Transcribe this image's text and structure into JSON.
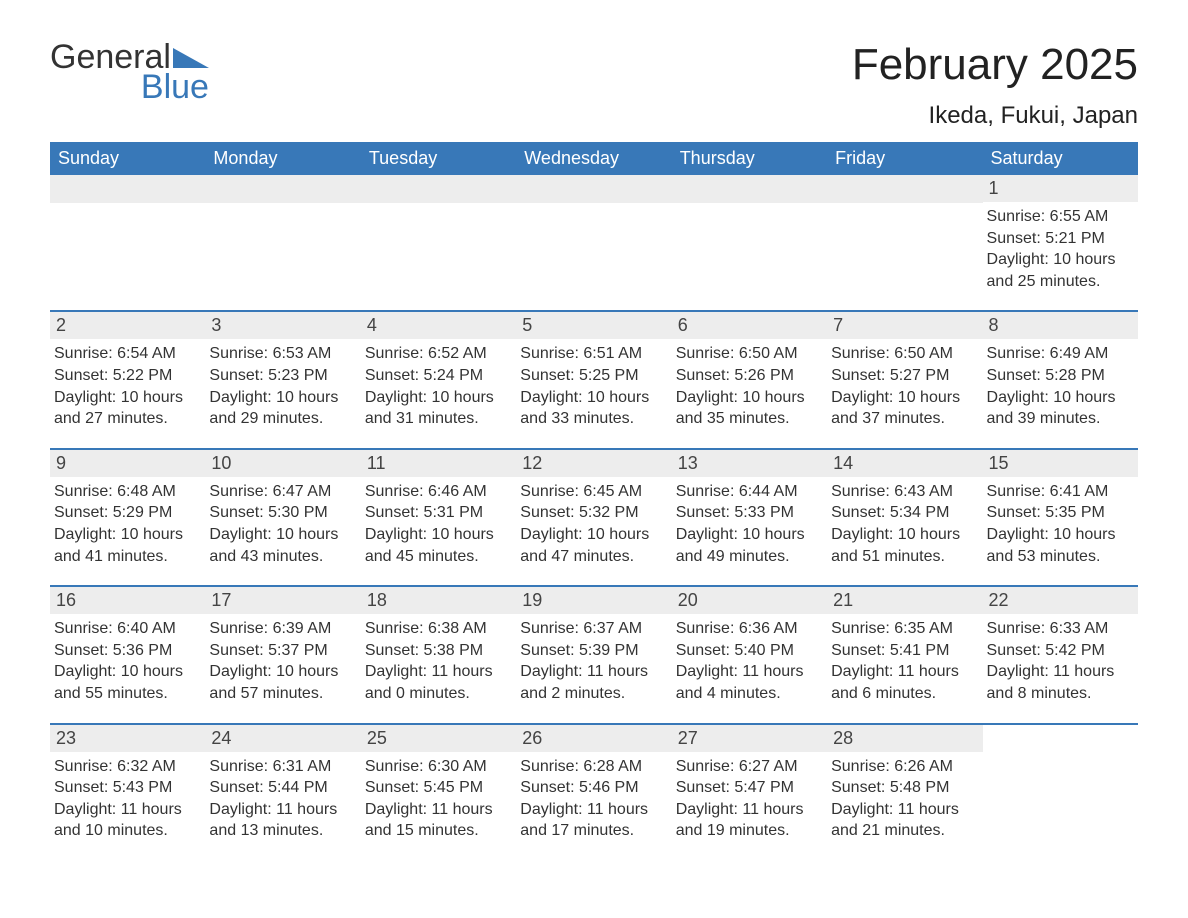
{
  "brand": {
    "word1": "General",
    "word2": "Blue"
  },
  "title": "February 2025",
  "location": "Ikeda, Fukui, Japan",
  "colors": {
    "header_bg": "#3878b8",
    "header_text": "#ffffff",
    "daynum_bg": "#ededed",
    "border": "#3878b8",
    "text": "#333333",
    "brand_blue": "#3878b8"
  },
  "typography": {
    "title_fontsize": 44,
    "location_fontsize": 24,
    "weekday_fontsize": 18,
    "daynum_fontsize": 18,
    "body_fontsize": 16
  },
  "weekdays": [
    "Sunday",
    "Monday",
    "Tuesday",
    "Wednesday",
    "Thursday",
    "Friday",
    "Saturday"
  ],
  "weeks": [
    [
      {
        "empty": true
      },
      {
        "empty": true
      },
      {
        "empty": true
      },
      {
        "empty": true
      },
      {
        "empty": true
      },
      {
        "empty": true
      },
      {
        "num": "1",
        "sunrise": "Sunrise: 6:55 AM",
        "sunset": "Sunset: 5:21 PM",
        "daylight1": "Daylight: 10 hours",
        "daylight2": "and 25 minutes."
      }
    ],
    [
      {
        "num": "2",
        "sunrise": "Sunrise: 6:54 AM",
        "sunset": "Sunset: 5:22 PM",
        "daylight1": "Daylight: 10 hours",
        "daylight2": "and 27 minutes."
      },
      {
        "num": "3",
        "sunrise": "Sunrise: 6:53 AM",
        "sunset": "Sunset: 5:23 PM",
        "daylight1": "Daylight: 10 hours",
        "daylight2": "and 29 minutes."
      },
      {
        "num": "4",
        "sunrise": "Sunrise: 6:52 AM",
        "sunset": "Sunset: 5:24 PM",
        "daylight1": "Daylight: 10 hours",
        "daylight2": "and 31 minutes."
      },
      {
        "num": "5",
        "sunrise": "Sunrise: 6:51 AM",
        "sunset": "Sunset: 5:25 PM",
        "daylight1": "Daylight: 10 hours",
        "daylight2": "and 33 minutes."
      },
      {
        "num": "6",
        "sunrise": "Sunrise: 6:50 AM",
        "sunset": "Sunset: 5:26 PM",
        "daylight1": "Daylight: 10 hours",
        "daylight2": "and 35 minutes."
      },
      {
        "num": "7",
        "sunrise": "Sunrise: 6:50 AM",
        "sunset": "Sunset: 5:27 PM",
        "daylight1": "Daylight: 10 hours",
        "daylight2": "and 37 minutes."
      },
      {
        "num": "8",
        "sunrise": "Sunrise: 6:49 AM",
        "sunset": "Sunset: 5:28 PM",
        "daylight1": "Daylight: 10 hours",
        "daylight2": "and 39 minutes."
      }
    ],
    [
      {
        "num": "9",
        "sunrise": "Sunrise: 6:48 AM",
        "sunset": "Sunset: 5:29 PM",
        "daylight1": "Daylight: 10 hours",
        "daylight2": "and 41 minutes."
      },
      {
        "num": "10",
        "sunrise": "Sunrise: 6:47 AM",
        "sunset": "Sunset: 5:30 PM",
        "daylight1": "Daylight: 10 hours",
        "daylight2": "and 43 minutes."
      },
      {
        "num": "11",
        "sunrise": "Sunrise: 6:46 AM",
        "sunset": "Sunset: 5:31 PM",
        "daylight1": "Daylight: 10 hours",
        "daylight2": "and 45 minutes."
      },
      {
        "num": "12",
        "sunrise": "Sunrise: 6:45 AM",
        "sunset": "Sunset: 5:32 PM",
        "daylight1": "Daylight: 10 hours",
        "daylight2": "and 47 minutes."
      },
      {
        "num": "13",
        "sunrise": "Sunrise: 6:44 AM",
        "sunset": "Sunset: 5:33 PM",
        "daylight1": "Daylight: 10 hours",
        "daylight2": "and 49 minutes."
      },
      {
        "num": "14",
        "sunrise": "Sunrise: 6:43 AM",
        "sunset": "Sunset: 5:34 PM",
        "daylight1": "Daylight: 10 hours",
        "daylight2": "and 51 minutes."
      },
      {
        "num": "15",
        "sunrise": "Sunrise: 6:41 AM",
        "sunset": "Sunset: 5:35 PM",
        "daylight1": "Daylight: 10 hours",
        "daylight2": "and 53 minutes."
      }
    ],
    [
      {
        "num": "16",
        "sunrise": "Sunrise: 6:40 AM",
        "sunset": "Sunset: 5:36 PM",
        "daylight1": "Daylight: 10 hours",
        "daylight2": "and 55 minutes."
      },
      {
        "num": "17",
        "sunrise": "Sunrise: 6:39 AM",
        "sunset": "Sunset: 5:37 PM",
        "daylight1": "Daylight: 10 hours",
        "daylight2": "and 57 minutes."
      },
      {
        "num": "18",
        "sunrise": "Sunrise: 6:38 AM",
        "sunset": "Sunset: 5:38 PM",
        "daylight1": "Daylight: 11 hours",
        "daylight2": "and 0 minutes."
      },
      {
        "num": "19",
        "sunrise": "Sunrise: 6:37 AM",
        "sunset": "Sunset: 5:39 PM",
        "daylight1": "Daylight: 11 hours",
        "daylight2": "and 2 minutes."
      },
      {
        "num": "20",
        "sunrise": "Sunrise: 6:36 AM",
        "sunset": "Sunset: 5:40 PM",
        "daylight1": "Daylight: 11 hours",
        "daylight2": "and 4 minutes."
      },
      {
        "num": "21",
        "sunrise": "Sunrise: 6:35 AM",
        "sunset": "Sunset: 5:41 PM",
        "daylight1": "Daylight: 11 hours",
        "daylight2": "and 6 minutes."
      },
      {
        "num": "22",
        "sunrise": "Sunrise: 6:33 AM",
        "sunset": "Sunset: 5:42 PM",
        "daylight1": "Daylight: 11 hours",
        "daylight2": "and 8 minutes."
      }
    ],
    [
      {
        "num": "23",
        "sunrise": "Sunrise: 6:32 AM",
        "sunset": "Sunset: 5:43 PM",
        "daylight1": "Daylight: 11 hours",
        "daylight2": "and 10 minutes."
      },
      {
        "num": "24",
        "sunrise": "Sunrise: 6:31 AM",
        "sunset": "Sunset: 5:44 PM",
        "daylight1": "Daylight: 11 hours",
        "daylight2": "and 13 minutes."
      },
      {
        "num": "25",
        "sunrise": "Sunrise: 6:30 AM",
        "sunset": "Sunset: 5:45 PM",
        "daylight1": "Daylight: 11 hours",
        "daylight2": "and 15 minutes."
      },
      {
        "num": "26",
        "sunrise": "Sunrise: 6:28 AM",
        "sunset": "Sunset: 5:46 PM",
        "daylight1": "Daylight: 11 hours",
        "daylight2": "and 17 minutes."
      },
      {
        "num": "27",
        "sunrise": "Sunrise: 6:27 AM",
        "sunset": "Sunset: 5:47 PM",
        "daylight1": "Daylight: 11 hours",
        "daylight2": "and 19 minutes."
      },
      {
        "num": "28",
        "sunrise": "Sunrise: 6:26 AM",
        "sunset": "Sunset: 5:48 PM",
        "daylight1": "Daylight: 11 hours",
        "daylight2": "and 21 minutes."
      },
      {
        "empty": true,
        "noBand": true
      }
    ]
  ]
}
